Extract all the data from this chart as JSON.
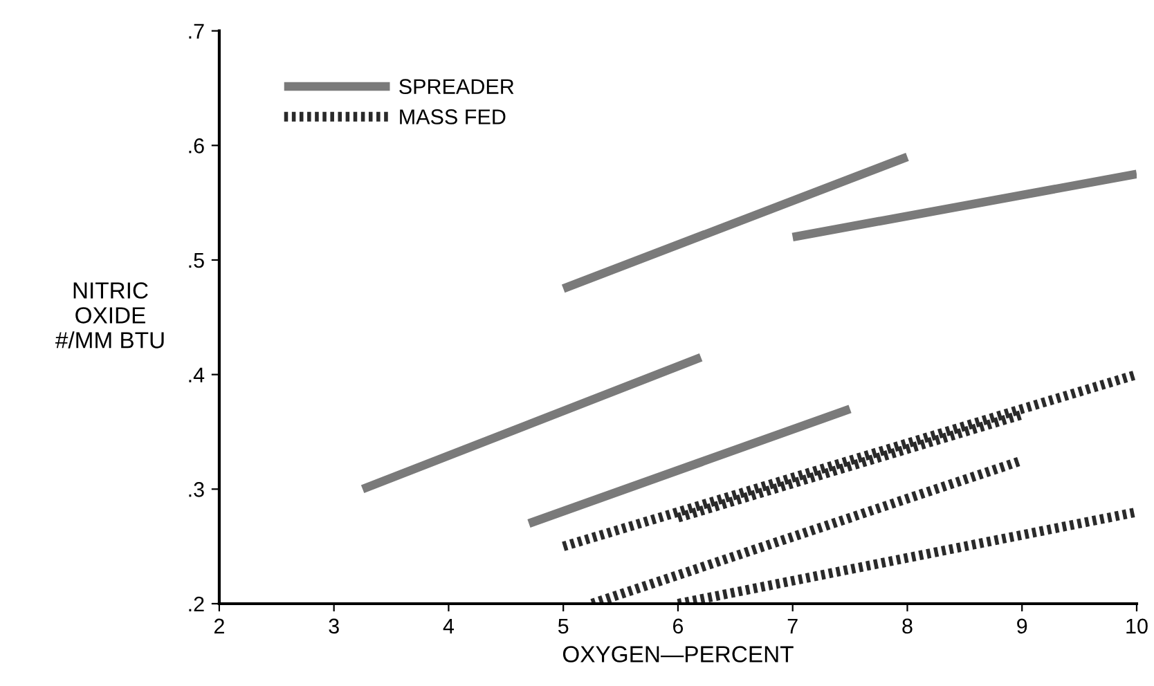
{
  "chart_data": {
    "type": "line",
    "xlabel": "OXYGEN—PERCENT",
    "ylabel": "NITRIC\nOXIDE\n#/MM BTU",
    "xlim": [
      2,
      10
    ],
    "ylim": [
      0.2,
      0.7
    ],
    "xticks": [
      2,
      3,
      4,
      5,
      6,
      7,
      8,
      9,
      10
    ],
    "yticks": [
      {
        "value": 0.2,
        "label": ".2"
      },
      {
        "value": 0.3,
        "label": ".3"
      },
      {
        "value": 0.4,
        "label": ".4"
      },
      {
        "value": 0.5,
        "label": ".5"
      },
      {
        "value": 0.6,
        "label": ".6"
      },
      {
        "value": 0.7,
        "label": ".7"
      }
    ],
    "grid": false,
    "legend": "top left",
    "marker": "none",
    "series": [
      {
        "name": "SPREADER",
        "color": "#7a7a7a",
        "line_style": "solid",
        "x": [
          5,
          8
        ],
        "values": [
          0.475,
          0.59
        ]
      },
      {
        "color": "#7a7a7a",
        "line_style": "solid",
        "x": [
          7,
          10
        ],
        "values": [
          0.52,
          0.575
        ]
      },
      {
        "color": "#7a7a7a",
        "line_style": "solid",
        "x": [
          3.25,
          6.2
        ],
        "values": [
          0.3,
          0.415
        ]
      },
      {
        "color": "#7a7a7a",
        "line_style": "solid",
        "x": [
          4.7,
          7.5
        ],
        "values": [
          0.27,
          0.37
        ]
      },
      {
        "name": "MASS FED",
        "color": "#2a2a2a",
        "line_style": "dotted",
        "x": [
          5,
          10
        ],
        "values": [
          0.25,
          0.4
        ]
      },
      {
        "color": "#2a2a2a",
        "line_style": "dotted",
        "x": [
          6,
          9
        ],
        "values": [
          0.275,
          0.365
        ]
      },
      {
        "color": "#2a2a2a",
        "line_style": "dotted",
        "x": [
          5.25,
          9
        ],
        "values": [
          0.2,
          0.325
        ]
      },
      {
        "color": "#2a2a2a",
        "line_style": "dotted",
        "x": [
          6,
          10
        ],
        "values": [
          0.2,
          0.28
        ]
      }
    ]
  }
}
